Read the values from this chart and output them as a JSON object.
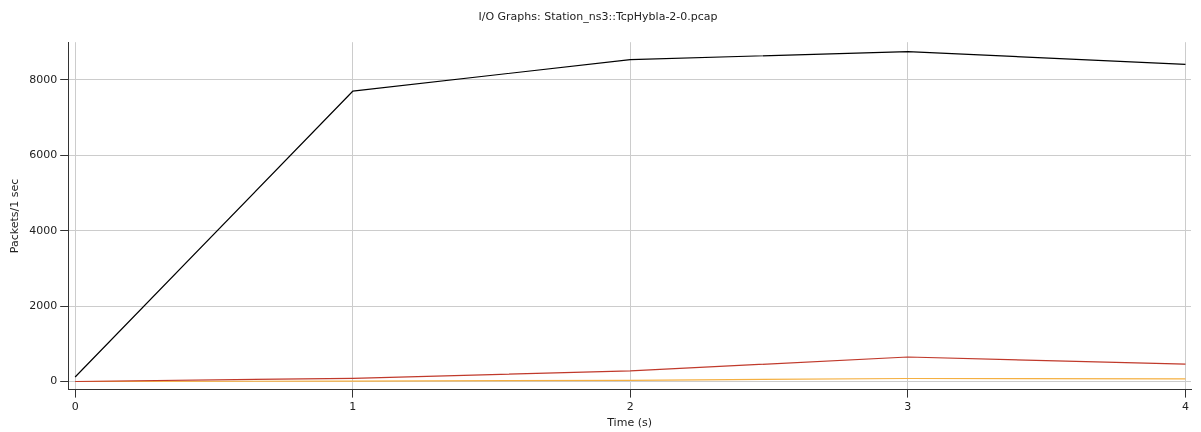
{
  "chart_data": {
    "type": "line",
    "title": "I/O Graphs: Station_ns3::TcpHybla-2-0.pcap",
    "xlabel": "Time (s)",
    "ylabel": "Packets/1 sec",
    "x": [
      0,
      1,
      2,
      3,
      4
    ],
    "series": [
      {
        "color": "#000000",
        "values": [
          120,
          7700,
          8540,
          8750,
          8410
        ]
      },
      {
        "color": "#c0392b",
        "values": [
          0,
          85,
          280,
          650,
          460
        ]
      },
      {
        "color": "#f5b041",
        "values": [
          0,
          10,
          30,
          80,
          70
        ]
      }
    ],
    "xlim": [
      -0.025,
      4.02
    ],
    "xticks": [
      0,
      1,
      2,
      3,
      4
    ],
    "ylim": [
      -215,
      9000
    ],
    "yticks": [
      0,
      2000,
      4000,
      6000,
      8000
    ],
    "grid": true,
    "legend": false,
    "marker": "none",
    "line_style": "solid"
  }
}
